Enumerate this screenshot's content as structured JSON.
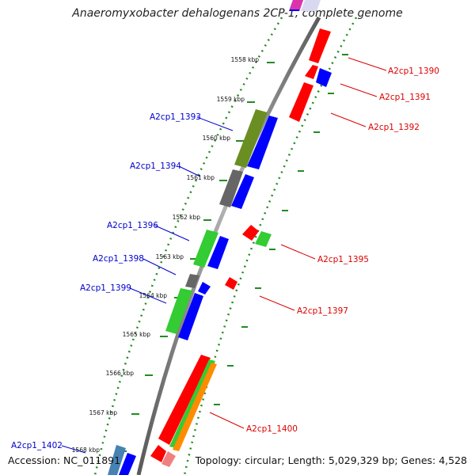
{
  "title": "Anaeromyxobacter dehalogenans 2CP-1, complete genome",
  "footer": {
    "accession": "Accession: NC_011891",
    "summary": "Topology: circular; Length: 5,029,329 bp; Genes: 4,528"
  },
  "ticks": [
    "1558 kbp",
    "1559 kbp",
    "1560 kbp",
    "1561 kbp",
    "1562 kbp",
    "1563 kbp",
    "1564 kbp",
    "1565 kbp",
    "1566 kbp",
    "1567 kbp",
    "1568 kbp"
  ],
  "genes_forward": [
    {
      "label": "A2cp1_1393"
    },
    {
      "label": "A2cp1_1394"
    },
    {
      "label": "A2cp1_1396"
    },
    {
      "label": "A2cp1_1398"
    },
    {
      "label": "A2cp1_1399"
    },
    {
      "label": "A2cp1_1402"
    }
  ],
  "genes_reverse": [
    {
      "label": "A2cp1_1390"
    },
    {
      "label": "A2cp1_1391"
    },
    {
      "label": "A2cp1_1392"
    },
    {
      "label": "A2cp1_1395"
    },
    {
      "label": "A2cp1_1397"
    },
    {
      "label": "A2cp1_1400"
    }
  ],
  "colors": {
    "forward_label": "#0000cc",
    "reverse_label": "#dd0000",
    "tick_dots": "#228b22",
    "backbone": "#8a8a8a",
    "red": "#ff0000",
    "blue": "#0000ff",
    "green": "#33cc33",
    "olive": "#6b8e23",
    "gray": "#666666",
    "orange": "#ff8c00",
    "magenta": "#dd33aa",
    "steel": "#4682b4"
  }
}
